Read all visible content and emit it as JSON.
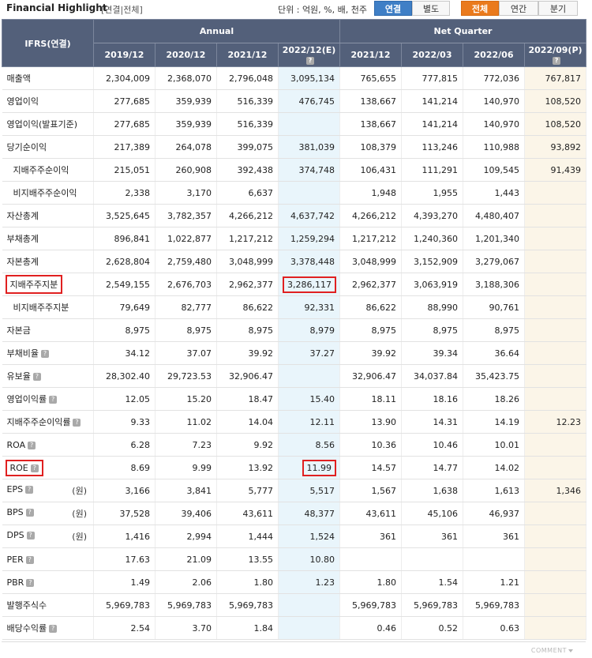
{
  "header": {
    "title": "Financial Highlight",
    "subtitle": "[연결|전체]",
    "unit_text": "단위 : 억원, %, 배, 천주"
  },
  "buttons": {
    "consolidated": "연결",
    "separate": "별도",
    "all": "전체",
    "annual": "연간",
    "quarter": "분기"
  },
  "table": {
    "corner_label": "IFRS(연결)",
    "groups": {
      "annual": "Annual",
      "quarter": "Net Quarter"
    },
    "columns": [
      "2019/12",
      "2020/12",
      "2021/12",
      "2022/12(E)",
      "2021/12",
      "2022/03",
      "2022/06",
      "2022/09(P)"
    ],
    "rows": [
      {
        "label": "매출액",
        "values": [
          "2,304,009",
          "2,368,070",
          "2,796,048",
          "3,095,134",
          "765,655",
          "777,815",
          "772,036",
          "767,817"
        ]
      },
      {
        "label": "영업이익",
        "values": [
          "277,685",
          "359,939",
          "516,339",
          "476,745",
          "138,667",
          "141,214",
          "140,970",
          "108,520"
        ]
      },
      {
        "label": "영업이익(발표기준)",
        "values": [
          "277,685",
          "359,939",
          "516,339",
          "",
          "138,667",
          "141,214",
          "140,970",
          "108,520"
        ]
      },
      {
        "label": "당기순이익",
        "values": [
          "217,389",
          "264,078",
          "399,075",
          "381,039",
          "108,379",
          "113,246",
          "110,988",
          "93,892"
        ]
      },
      {
        "label": "지배주주순이익",
        "values": [
          "215,051",
          "260,908",
          "392,438",
          "374,748",
          "106,431",
          "111,291",
          "109,545",
          "91,439"
        ]
      },
      {
        "label": "비지배주주순이익",
        "values": [
          "2,338",
          "3,170",
          "6,637",
          "",
          "1,948",
          "1,955",
          "1,443",
          ""
        ]
      },
      {
        "label": "자산총계",
        "values": [
          "3,525,645",
          "3,782,357",
          "4,266,212",
          "4,637,742",
          "4,266,212",
          "4,393,270",
          "4,480,407",
          ""
        ]
      },
      {
        "label": "부채총계",
        "values": [
          "896,841",
          "1,022,877",
          "1,217,212",
          "1,259,294",
          "1,217,212",
          "1,240,360",
          "1,201,340",
          ""
        ]
      },
      {
        "label": "자본총계",
        "values": [
          "2,628,804",
          "2,759,480",
          "3,048,999",
          "3,378,448",
          "3,048,999",
          "3,152,909",
          "3,279,067",
          ""
        ]
      },
      {
        "label": "지배주주지분",
        "values": [
          "2,549,155",
          "2,676,703",
          "2,962,377",
          "3,286,117",
          "2,962,377",
          "3,063,919",
          "3,188,306",
          ""
        ]
      },
      {
        "label": "비지배주주지분",
        "values": [
          "79,649",
          "82,777",
          "86,622",
          "92,331",
          "86,622",
          "88,990",
          "90,761",
          ""
        ]
      },
      {
        "label": "자본금",
        "values": [
          "8,975",
          "8,975",
          "8,975",
          "8,979",
          "8,975",
          "8,975",
          "8,975",
          ""
        ]
      },
      {
        "label": "부채비율",
        "values": [
          "34.12",
          "37.07",
          "39.92",
          "37.27",
          "39.92",
          "39.34",
          "36.64",
          ""
        ]
      },
      {
        "label": "유보율",
        "values": [
          "28,302.40",
          "29,723.53",
          "32,906.47",
          "",
          "32,906.47",
          "34,037.84",
          "35,423.75",
          ""
        ]
      },
      {
        "label": "영업이익률",
        "values": [
          "12.05",
          "15.20",
          "18.47",
          "15.40",
          "18.11",
          "18.16",
          "18.26",
          ""
        ]
      },
      {
        "label": "지배주주순이익률",
        "values": [
          "9.33",
          "11.02",
          "14.04",
          "12.11",
          "13.90",
          "14.31",
          "14.19",
          "12.23"
        ]
      },
      {
        "label": "ROA",
        "values": [
          "6.28",
          "7.23",
          "9.92",
          "8.56",
          "10.36",
          "10.46",
          "10.01",
          ""
        ]
      },
      {
        "label": "ROE",
        "values": [
          "8.69",
          "9.99",
          "13.92",
          "11.99",
          "14.57",
          "14.77",
          "14.02",
          ""
        ]
      },
      {
        "label": "EPS",
        "suffix": "(원)",
        "values": [
          "3,166",
          "3,841",
          "5,777",
          "5,517",
          "1,567",
          "1,638",
          "1,613",
          "1,346"
        ]
      },
      {
        "label": "BPS",
        "suffix": "(원)",
        "values": [
          "37,528",
          "39,406",
          "43,611",
          "48,377",
          "43,611",
          "45,106",
          "46,937",
          ""
        ]
      },
      {
        "label": "DPS",
        "suffix": "(원)",
        "values": [
          "1,416",
          "2,994",
          "1,444",
          "1,524",
          "361",
          "361",
          "361",
          ""
        ]
      },
      {
        "label": "PER",
        "values": [
          "17.63",
          "21.09",
          "13.55",
          "10.80",
          "",
          "",
          "",
          ""
        ]
      },
      {
        "label": "PBR",
        "values": [
          "1.49",
          "2.06",
          "1.80",
          "1.23",
          "1.80",
          "1.54",
          "1.21",
          ""
        ]
      },
      {
        "label": "발행주식수",
        "values": [
          "5,969,783",
          "5,969,783",
          "5,969,783",
          "",
          "5,969,783",
          "5,969,783",
          "5,969,783",
          ""
        ]
      },
      {
        "label": "배당수익률",
        "values": [
          "2.54",
          "3.70",
          "1.84",
          "",
          "0.46",
          "0.52",
          "0.63",
          ""
        ]
      }
    ]
  },
  "footer": {
    "comment": "COMMENT"
  },
  "colors": {
    "header_bg": "#53607a",
    "estimate_bg": "#e9f5fb",
    "preliminary_bg": "#fbf5e8",
    "highlight": "#e02020",
    "blue_button": "#3f7fc6",
    "orange_button": "#ea7a1d"
  }
}
